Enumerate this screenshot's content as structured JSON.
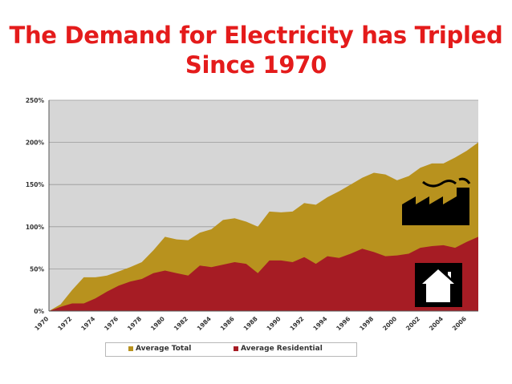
{
  "title": {
    "line1": "The Demand for Electricity has Tripled",
    "line2": "Since 1970"
  },
  "colors": {
    "title": "#e41b1b",
    "total": "#b8921e",
    "residential": "#a61c24",
    "plot_bg": "#d6d6d6",
    "icon_bg": "#000000",
    "icon_fg": "#ffffff"
  },
  "icons": [
    "factory-icon",
    "house-icon"
  ],
  "chart_data": {
    "type": "area",
    "title": "The Demand for Electricity has Tripled Since 1970",
    "xlabel": "",
    "ylabel": "",
    "ylim": [
      0,
      250
    ],
    "xlim": [
      1970,
      2007
    ],
    "yticks": [
      0,
      50,
      100,
      150,
      200,
      250
    ],
    "ytick_labels": [
      "0%",
      "50%",
      "100%",
      "150%",
      "200%",
      "250%"
    ],
    "xticks": [
      1970,
      1972,
      1974,
      1976,
      1978,
      1980,
      1982,
      1984,
      1986,
      1988,
      1990,
      1992,
      1994,
      1996,
      1998,
      2000,
      2002,
      2004,
      2006
    ],
    "xtick_labels": [
      "1970",
      "1972",
      "1974",
      "1976",
      "1978",
      "1980",
      "1982",
      "1984",
      "1986",
      "1988",
      "1990",
      "1992",
      "1994",
      "1996",
      "1998",
      "2000",
      "2002",
      "2004",
      "2006"
    ],
    "grid": true,
    "legend_position": "bottom",
    "x": [
      1970,
      1971,
      1972,
      1973,
      1974,
      1975,
      1976,
      1977,
      1978,
      1979,
      1980,
      1981,
      1982,
      1983,
      1984,
      1985,
      1986,
      1987,
      1988,
      1989,
      1990,
      1991,
      1992,
      1993,
      1994,
      1995,
      1996,
      1997,
      1998,
      1999,
      2000,
      2001,
      2002,
      2003,
      2004,
      2005,
      2006,
      2007
    ],
    "series": [
      {
        "name": "Average Total",
        "values": [
          0,
          8,
          25,
          40,
          40,
          42,
          47,
          52,
          58,
          72,
          88,
          85,
          84,
          93,
          97,
          108,
          110,
          106,
          100,
          118,
          117,
          118,
          128,
          126,
          135,
          142,
          150,
          158,
          164,
          162,
          155,
          160,
          170,
          175,
          175,
          182,
          190,
          200
        ]
      },
      {
        "name": "Average Residential",
        "values": [
          0,
          5,
          9,
          9,
          15,
          23,
          30,
          35,
          38,
          45,
          48,
          45,
          42,
          54,
          52,
          55,
          58,
          56,
          45,
          60,
          60,
          58,
          64,
          56,
          65,
          63,
          68,
          74,
          70,
          65,
          66,
          68,
          75,
          77,
          78,
          75,
          82,
          88
        ]
      }
    ]
  }
}
